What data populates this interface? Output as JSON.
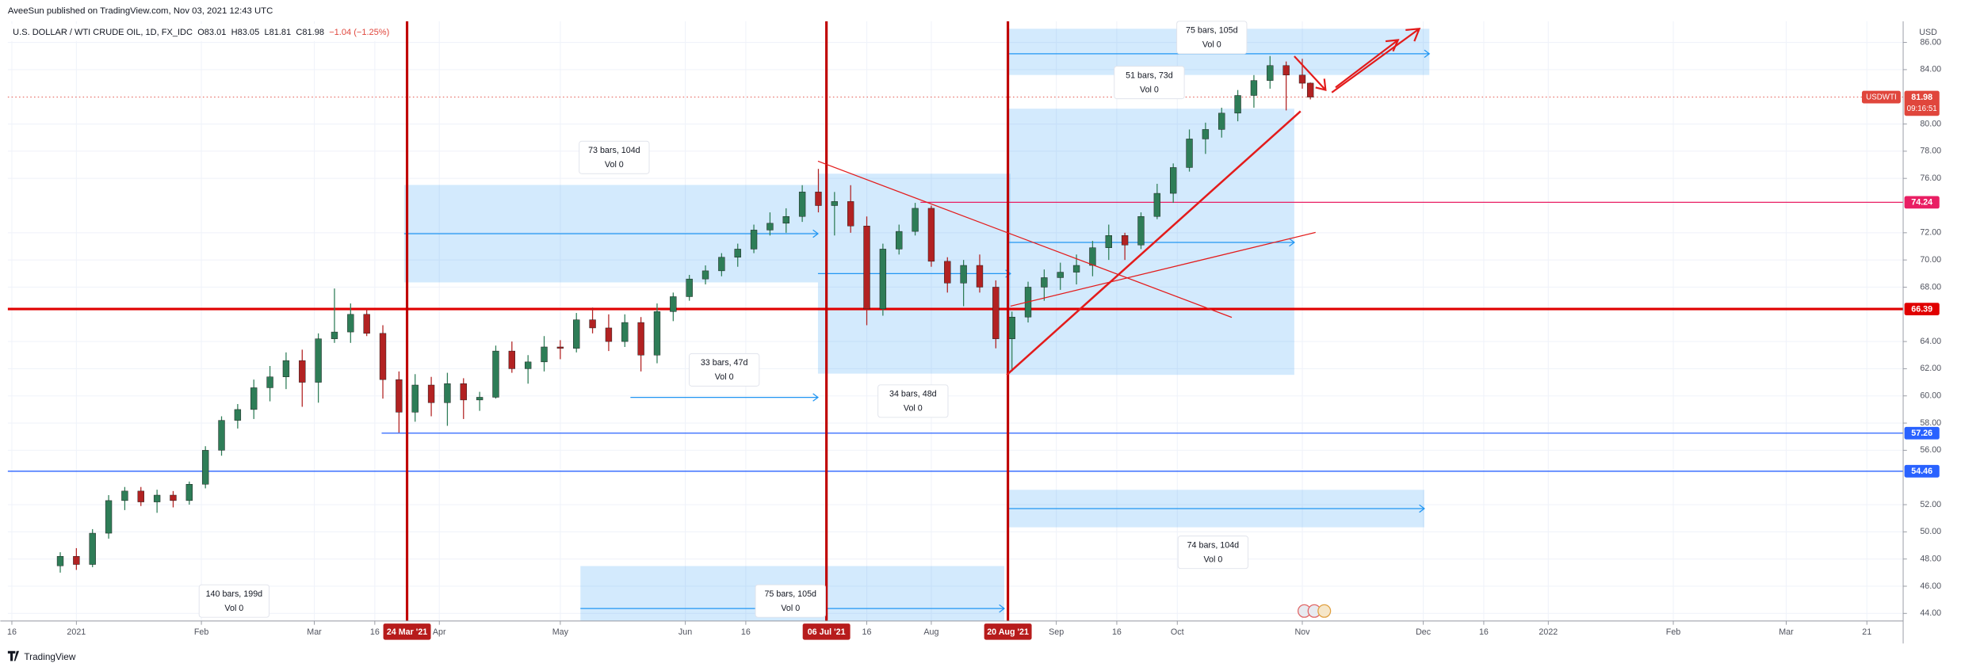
{
  "header": {
    "publisher": "AveeSun published on TradingView.com, Nov 03, 2021 12:43 UTC",
    "symbol": "U.S. DOLLAR / WTI CRUDE OIL, 1D, FX_IDC",
    "ohlc_legend": [
      "O83.01",
      "H83.05",
      "L81.81",
      "C81.98",
      "−1.04 (−1.25%)"
    ],
    "currency": "USD"
  },
  "footer": {
    "brand": "TradingView"
  },
  "chart_data": {
    "type": "candlestick",
    "up_color": "#2e7d57",
    "down_color": "#b22222",
    "grid": true,
    "xlim": [
      "2020-12-15",
      "2022-03-30"
    ],
    "ylim": [
      43.44,
      87.56
    ],
    "xticks": [
      {
        "value": "2020-12-16",
        "label": "16"
      },
      {
        "value": "2021-01-01",
        "label": "2021"
      },
      {
        "value": "2021-02-01",
        "label": "Feb"
      },
      {
        "value": "2021-03-01",
        "label": "Mar"
      },
      {
        "value": "2021-03-16",
        "label": "16"
      },
      {
        "value": "2021-04-01",
        "label": "Apr"
      },
      {
        "value": "2021-05-01",
        "label": "May"
      },
      {
        "value": "2021-06-01",
        "label": "Jun"
      },
      {
        "value": "2021-06-16",
        "label": "16"
      },
      {
        "value": "2021-07-16",
        "label": "16"
      },
      {
        "value": "2021-08-01",
        "label": "Aug"
      },
      {
        "value": "2021-09-01",
        "label": "Sep"
      },
      {
        "value": "2021-09-16",
        "label": "16"
      },
      {
        "value": "2021-10-01",
        "label": "Oct"
      },
      {
        "value": "2021-11-01",
        "label": "Nov"
      },
      {
        "value": "2021-12-01",
        "label": "Dec"
      },
      {
        "value": "2021-12-16",
        "label": "16"
      },
      {
        "value": "2022-01-01",
        "label": "2022"
      },
      {
        "value": "2022-02-01",
        "label": "Feb"
      },
      {
        "value": "2022-03-01",
        "label": "Mar"
      },
      {
        "value": "2022-03-21",
        "label": "21"
      }
    ],
    "yticks": [
      {
        "value": 86,
        "label": "86.00"
      },
      {
        "value": 84,
        "label": "84.00"
      },
      {
        "value": 80,
        "label": "80.00"
      },
      {
        "value": 78,
        "label": "78.00"
      },
      {
        "value": 76,
        "label": "76.00"
      },
      {
        "value": 72,
        "label": "72.00"
      },
      {
        "value": 70,
        "label": "70.00"
      },
      {
        "value": 68,
        "label": "68.00"
      },
      {
        "value": 64,
        "label": "64.00"
      },
      {
        "value": 62,
        "label": "62.00"
      },
      {
        "value": 60,
        "label": "60.00"
      },
      {
        "value": 58,
        "label": "58.00"
      },
      {
        "value": 56,
        "label": "56.00"
      },
      {
        "value": 52,
        "label": "52.00"
      },
      {
        "value": 50,
        "label": "50.00"
      },
      {
        "value": 48,
        "label": "48.00"
      },
      {
        "value": 46,
        "label": "46.00"
      },
      {
        "value": 44,
        "label": "44.00"
      }
    ],
    "x": [
      "2020-12-28",
      "2021-01-01",
      "2021-01-05",
      "2021-01-09",
      "2021-01-13",
      "2021-01-17",
      "2021-01-21",
      "2021-01-25",
      "2021-01-29",
      "2021-02-02",
      "2021-02-06",
      "2021-02-10",
      "2021-02-14",
      "2021-02-18",
      "2021-02-22",
      "2021-02-26",
      "2021-03-02",
      "2021-03-06",
      "2021-03-10",
      "2021-03-14",
      "2021-03-18",
      "2021-03-22",
      "2021-03-26",
      "2021-03-30",
      "2021-04-03",
      "2021-04-07",
      "2021-04-11",
      "2021-04-15",
      "2021-04-19",
      "2021-04-23",
      "2021-04-27",
      "2021-05-01",
      "2021-05-05",
      "2021-05-09",
      "2021-05-13",
      "2021-05-17",
      "2021-05-21",
      "2021-05-25",
      "2021-05-29",
      "2021-06-02",
      "2021-06-06",
      "2021-06-10",
      "2021-06-14",
      "2021-06-18",
      "2021-06-22",
      "2021-06-26",
      "2021-06-30",
      "2021-07-04",
      "2021-07-08",
      "2021-07-12",
      "2021-07-16",
      "2021-07-20",
      "2021-07-24",
      "2021-07-28",
      "2021-08-01",
      "2021-08-05",
      "2021-08-09",
      "2021-08-13",
      "2021-08-17",
      "2021-08-21",
      "2021-08-25",
      "2021-08-29",
      "2021-09-02",
      "2021-09-06",
      "2021-09-10",
      "2021-09-14",
      "2021-09-18",
      "2021-09-22",
      "2021-09-26",
      "2021-09-30",
      "2021-10-04",
      "2021-10-08",
      "2021-10-12",
      "2021-10-16",
      "2021-10-20",
      "2021-10-24",
      "2021-10-28",
      "2021-11-01",
      "2021-11-03"
    ],
    "ohlc": [
      [
        47.5,
        48.5,
        47,
        48.2
      ],
      [
        48.2,
        48.8,
        47.2,
        47.6
      ],
      [
        47.6,
        50.2,
        47.4,
        49.9
      ],
      [
        49.9,
        52.7,
        49.5,
        52.3
      ],
      [
        52.3,
        53.3,
        51.6,
        53
      ],
      [
        53,
        53.3,
        51.9,
        52.2
      ],
      [
        52.2,
        53.1,
        51.4,
        52.7
      ],
      [
        52.7,
        53,
        51.8,
        52.3
      ],
      [
        52.3,
        53.7,
        52,
        53.5
      ],
      [
        53.5,
        56.3,
        53.2,
        56
      ],
      [
        56,
        58.5,
        55.6,
        58.2
      ],
      [
        58.2,
        59.4,
        57.6,
        59
      ],
      [
        59,
        61.2,
        58.3,
        60.6
      ],
      [
        60.6,
        62.2,
        59.6,
        61.4
      ],
      [
        61.4,
        63.2,
        60.5,
        62.6
      ],
      [
        62.6,
        63.4,
        59.2,
        61
      ],
      [
        61,
        64.6,
        59.5,
        64.2
      ],
      [
        64.2,
        67.9,
        63.9,
        64.7
      ],
      [
        64.7,
        66.8,
        63.9,
        66
      ],
      [
        66,
        66.4,
        64.4,
        64.6
      ],
      [
        64.6,
        65.2,
        59.8,
        61.2
      ],
      [
        61.2,
        61.8,
        57.3,
        58.8
      ],
      [
        58.8,
        61.6,
        58.1,
        60.8
      ],
      [
        60.8,
        61.4,
        58.5,
        59.5
      ],
      [
        59.5,
        61.7,
        57.8,
        60.9
      ],
      [
        60.9,
        61.3,
        58.3,
        59.7
      ],
      [
        59.7,
        60.3,
        58.9,
        59.9
      ],
      [
        59.9,
        63.7,
        59.8,
        63.3
      ],
      [
        63.3,
        64,
        61.7,
        62
      ],
      [
        62,
        63,
        60.9,
        62.5
      ],
      [
        62.5,
        64.4,
        61.8,
        63.6
      ],
      [
        63.6,
        64.1,
        62.7,
        63.5
      ],
      [
        63.5,
        66.1,
        63.2,
        65.6
      ],
      [
        65.6,
        66.5,
        64.6,
        65
      ],
      [
        65,
        66,
        63.3,
        64
      ],
      [
        64,
        66,
        63.6,
        65.4
      ],
      [
        65.4,
        65.8,
        61.8,
        63
      ],
      [
        63,
        66.8,
        62.4,
        66.2
      ],
      [
        66.2,
        67.6,
        65.5,
        67.3
      ],
      [
        67.3,
        68.9,
        67,
        68.6
      ],
      [
        68.6,
        69.6,
        68.2,
        69.2
      ],
      [
        69.2,
        70.5,
        68.8,
        70.2
      ],
      [
        70.2,
        71.2,
        69.5,
        70.8
      ],
      [
        70.8,
        72.6,
        70.5,
        72.2
      ],
      [
        72.2,
        73.5,
        71.8,
        72.7
      ],
      [
        72.7,
        73.8,
        72,
        73.2
      ],
      [
        73.2,
        75.5,
        72.8,
        75
      ],
      [
        75,
        76.7,
        73.5,
        74
      ],
      [
        74,
        75,
        71.8,
        74.3
      ],
      [
        74.3,
        75.5,
        72,
        72.5
      ],
      [
        72.5,
        73.2,
        65.2,
        66.4
      ],
      [
        66.4,
        71.2,
        65.9,
        70.8
      ],
      [
        70.8,
        72.6,
        70.4,
        72.1
      ],
      [
        72.1,
        74.2,
        71.8,
        73.8
      ],
      [
        73.8,
        74,
        69.5,
        69.9
      ],
      [
        69.9,
        70.2,
        67.6,
        68.3
      ],
      [
        68.3,
        70,
        66.6,
        69.6
      ],
      [
        69.6,
        70.4,
        67.6,
        68
      ],
      [
        68,
        68.5,
        63.5,
        64.2
      ],
      [
        64.2,
        66.2,
        61.8,
        65.8
      ],
      [
        65.8,
        68.4,
        65.4,
        68
      ],
      [
        68,
        69.3,
        67,
        68.7
      ],
      [
        68.7,
        69.8,
        67.8,
        69.1
      ],
      [
        69.1,
        70.4,
        68.2,
        69.6
      ],
      [
        69.6,
        71.4,
        68.8,
        70.9
      ],
      [
        70.9,
        72.6,
        70,
        71.8
      ],
      [
        71.8,
        72,
        70,
        71.1
      ],
      [
        71.1,
        73.5,
        70.8,
        73.2
      ],
      [
        73.2,
        75.6,
        73,
        74.9
      ],
      [
        74.9,
        77.1,
        74.2,
        76.8
      ],
      [
        76.8,
        79.6,
        76.5,
        78.9
      ],
      [
        78.9,
        80.1,
        77.8,
        79.6
      ],
      [
        79.6,
        81.2,
        79,
        80.8
      ],
      [
        80.8,
        82.5,
        80.2,
        82.1
      ],
      [
        82.1,
        83.6,
        81.2,
        83.2
      ],
      [
        83.2,
        85,
        82.6,
        84.3
      ],
      [
        84.3,
        84.6,
        81,
        83.6
      ],
      [
        83.6,
        84.8,
        82.6,
        83
      ],
      [
        83.01,
        83.05,
        81.81,
        81.98
      ]
    ],
    "levels": [
      {
        "value": 74.24,
        "color": "#e91e63"
      },
      {
        "value": 66.39,
        "color": "#e00000"
      },
      {
        "value": 57.26,
        "color": "#2962ff"
      },
      {
        "value": 54.46,
        "color": "#2962ff"
      }
    ],
    "last_price": {
      "value": 81.98,
      "symbol": "USDWTI",
      "countdown": "09:16:51",
      "color": "#e0463c"
    },
    "date_markers": [
      {
        "value": "2021-03-24",
        "label": "24 Mar '21"
      },
      {
        "value": "2021-07-06",
        "label": "06 Jul '21"
      },
      {
        "value": "2021-08-20",
        "label": "20 Aug '21"
      }
    ],
    "ranges": [
      {
        "bars": "73 bars, 104d",
        "vol": "Vol 0"
      },
      {
        "bars": "34 bars, 48d",
        "vol": "Vol 0"
      },
      {
        "bars": "51 bars, 73d",
        "vol": "Vol 0"
      },
      {
        "bars": "75 bars, 105d",
        "vol": "Vol 0"
      },
      {
        "bars": "74 bars, 104d",
        "vol": "Vol 0"
      },
      {
        "bars": "75 bars, 105d",
        "vol": "Vol 0"
      },
      {
        "bars": "33 bars, 47d",
        "vol": "Vol 0"
      },
      {
        "bars": "140 bars, 199d",
        "vol": "Vol 0"
      }
    ]
  }
}
